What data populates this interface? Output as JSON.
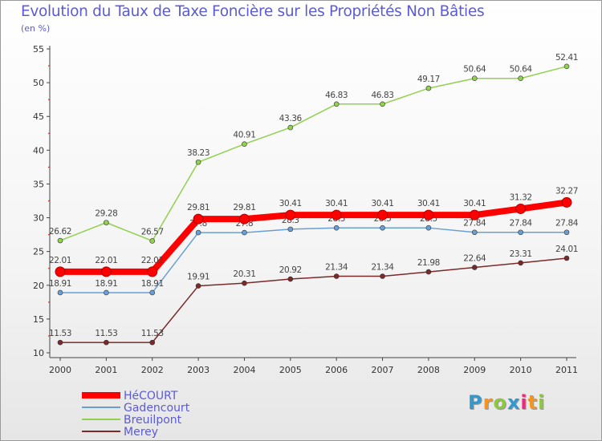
{
  "title": "Evolution du Taux de Taxe Foncière sur les Propriétés Non Bâties",
  "unit_label": "(en %)",
  "chart_data": {
    "type": "line",
    "x": [
      "2000",
      "2001",
      "2002",
      "2003",
      "2004",
      "2005",
      "2006",
      "2007",
      "2008",
      "2009",
      "2010",
      "2011"
    ],
    "ylim": [
      10,
      55
    ],
    "yticks": [
      10,
      15,
      20,
      25,
      30,
      35,
      40,
      45,
      50,
      55
    ],
    "grid": false,
    "series": [
      {
        "name": "HéCOURT",
        "color": "#ff0000",
        "highlight": true,
        "values": [
          22.01,
          22.01,
          22.01,
          29.81,
          29.81,
          30.41,
          30.41,
          30.41,
          30.41,
          30.41,
          31.32,
          32.27
        ],
        "labels": [
          "22.01",
          "22.01",
          "22.01",
          "29.81",
          "29.81",
          "30.41",
          "30.41",
          "30.41",
          "30.41",
          "30.41",
          "31.32",
          "32.27"
        ]
      },
      {
        "name": "Gadencourt",
        "color": "#6a9fd4",
        "values": [
          18.91,
          18.91,
          18.91,
          27.8,
          27.8,
          28.3,
          28.5,
          28.5,
          28.5,
          27.84,
          27.84,
          27.84
        ],
        "labels": [
          "18.91",
          "18.91",
          "18.91",
          "27.8",
          "27.8",
          "28.3",
          "28.5",
          "28.5",
          "28.5",
          "27.84",
          "27.84",
          "27.84"
        ]
      },
      {
        "name": "Breuilpont",
        "color": "#92d050",
        "values": [
          26.62,
          29.28,
          26.57,
          38.23,
          40.91,
          43.36,
          46.83,
          46.83,
          49.17,
          50.64,
          50.64,
          52.41
        ],
        "labels": [
          "26.62",
          "29.28",
          "26.57",
          "38.23",
          "40.91",
          "43.36",
          "46.83",
          "46.83",
          "49.17",
          "50.64",
          "50.64",
          "52.41"
        ]
      },
      {
        "name": "Merey",
        "color": "#7a2a2a",
        "values": [
          11.53,
          11.53,
          11.53,
          19.91,
          20.31,
          20.92,
          21.34,
          21.34,
          21.98,
          22.64,
          23.31,
          24.01
        ],
        "labels": [
          "11.53",
          "11.53",
          "11.53",
          "19.91",
          "20.31",
          "20.92",
          "21.34",
          "21.34",
          "21.98",
          "22.64",
          "23.31",
          "24.01"
        ]
      }
    ]
  },
  "logo": {
    "letters": [
      "P",
      "r",
      "o",
      "x",
      "i",
      "t",
      "i"
    ],
    "colors": [
      "#3399cc",
      "#f7941d",
      "#8dc63f",
      "#3399cc",
      "#ee2a7b",
      "#f7941d",
      "#8dc63f"
    ]
  }
}
